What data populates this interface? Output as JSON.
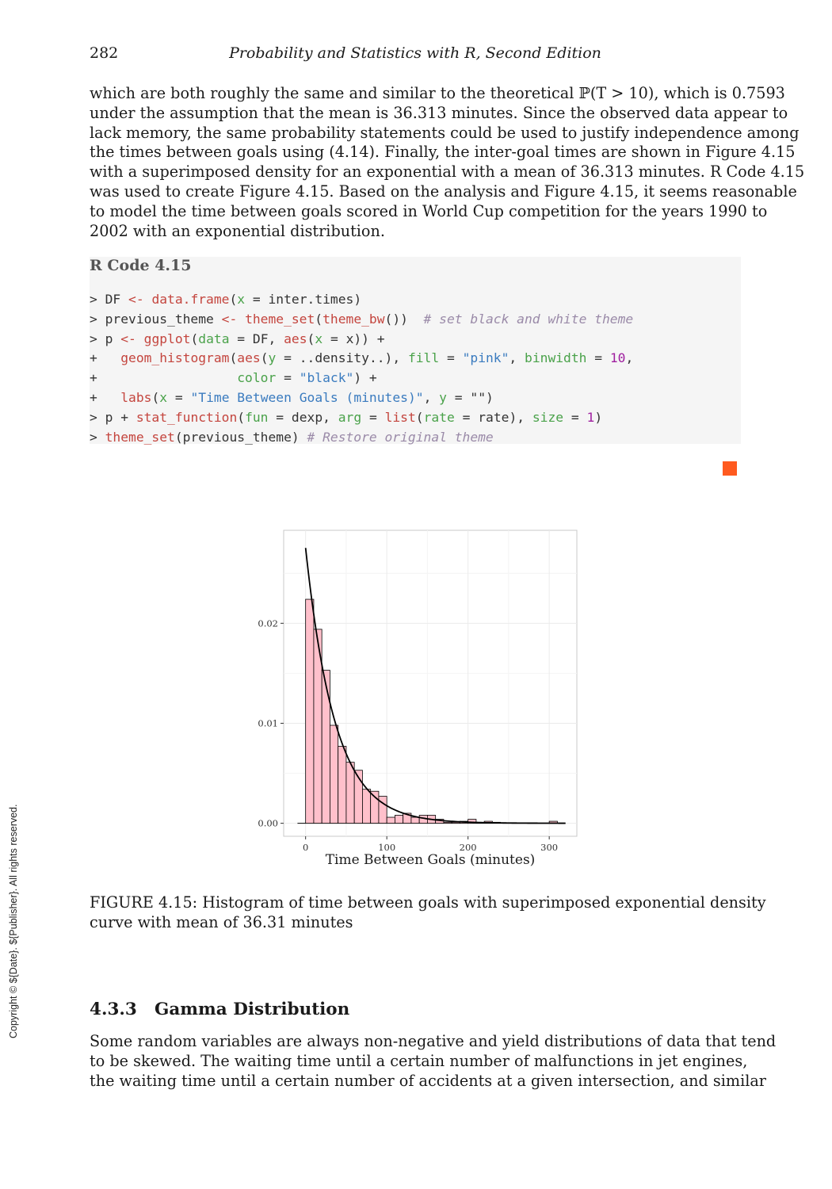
{
  "header": {
    "page_number": "282",
    "running_title": "Probability and Statistics with R, Second Edition"
  },
  "paragraph1": {
    "lines": [
      "which are both roughly the same and similar to the theoretical ℙ(T > 10), which is 0.7593",
      "under the assumption that the mean is 36.313 minutes. Since the observed data appear to",
      "lack memory, the same probability statements could be used to justify independence among",
      "the times between goals using (4.14). Finally, the inter-goal times are shown in Figure 4.15",
      "with a superimposed density for an exponential with a mean of 36.313 minutes. R Code 4.15",
      "was used to create Figure 4.15. Based on the analysis and Figure 4.15, it seems reasonable",
      "to model the time between goals scored in World Cup competition for the years 1990 to",
      "2002 with an exponential distribution."
    ]
  },
  "code": {
    "title": "R Code 4.15",
    "lines": [
      [
        {
          "t": "> DF "
        },
        {
          "t": "<-",
          "c": "kw"
        },
        {
          "t": " "
        },
        {
          "t": "data.frame",
          "c": "kw"
        },
        {
          "t": "("
        },
        {
          "t": "x",
          "c": "arg"
        },
        {
          "t": " = inter.times)"
        }
      ],
      [
        {
          "t": "> previous_theme "
        },
        {
          "t": "<-",
          "c": "kw"
        },
        {
          "t": " "
        },
        {
          "t": "theme_set",
          "c": "kw"
        },
        {
          "t": "("
        },
        {
          "t": "theme_bw",
          "c": "kw"
        },
        {
          "t": "())  "
        },
        {
          "t": "# set black and white theme",
          "c": "com"
        }
      ],
      [
        {
          "t": "> p "
        },
        {
          "t": "<-",
          "c": "kw"
        },
        {
          "t": " "
        },
        {
          "t": "ggplot",
          "c": "kw"
        },
        {
          "t": "("
        },
        {
          "t": "data",
          "c": "arg"
        },
        {
          "t": " = DF, "
        },
        {
          "t": "aes",
          "c": "kw"
        },
        {
          "t": "("
        },
        {
          "t": "x",
          "c": "arg"
        },
        {
          "t": " = x)) +"
        }
      ],
      [
        {
          "t": "+   "
        },
        {
          "t": "geom_histogram",
          "c": "kw"
        },
        {
          "t": "("
        },
        {
          "t": "aes",
          "c": "kw"
        },
        {
          "t": "("
        },
        {
          "t": "y",
          "c": "arg"
        },
        {
          "t": " = ..density..), "
        },
        {
          "t": "fill",
          "c": "arg"
        },
        {
          "t": " = "
        },
        {
          "t": "\"pink\"",
          "c": "str"
        },
        {
          "t": ", "
        },
        {
          "t": "binwidth",
          "c": "arg"
        },
        {
          "t": " = "
        },
        {
          "t": "10",
          "c": "num"
        },
        {
          "t": ","
        }
      ],
      [
        {
          "t": "+                  "
        },
        {
          "t": "color",
          "c": "arg"
        },
        {
          "t": " = "
        },
        {
          "t": "\"black\"",
          "c": "str"
        },
        {
          "t": ") +"
        }
      ],
      [
        {
          "t": "+   "
        },
        {
          "t": "labs",
          "c": "kw"
        },
        {
          "t": "("
        },
        {
          "t": "x",
          "c": "arg"
        },
        {
          "t": " = "
        },
        {
          "t": "\"Time Between Goals (minutes)\"",
          "c": "str"
        },
        {
          "t": ", "
        },
        {
          "t": "y",
          "c": "arg"
        },
        {
          "t": " = \"\")"
        }
      ],
      [
        {
          "t": "> p + "
        },
        {
          "t": "stat_function",
          "c": "kw"
        },
        {
          "t": "("
        },
        {
          "t": "fun",
          "c": "arg"
        },
        {
          "t": " = dexp, "
        },
        {
          "t": "arg",
          "c": "arg"
        },
        {
          "t": " = "
        },
        {
          "t": "list",
          "c": "kw"
        },
        {
          "t": "("
        },
        {
          "t": "rate",
          "c": "arg"
        },
        {
          "t": " = rate), "
        },
        {
          "t": "size",
          "c": "arg"
        },
        {
          "t": " = "
        },
        {
          "t": "1",
          "c": "num"
        },
        {
          "t": ")"
        }
      ],
      [
        {
          "t": "> "
        },
        {
          "t": "theme_set",
          "c": "kw"
        },
        {
          "t": "(previous_theme) "
        },
        {
          "t": "# Restore original theme",
          "c": "com"
        }
      ]
    ]
  },
  "figure": {
    "caption_lines": [
      "FIGURE 4.15: Histogram of time between goals with superimposed exponential density",
      "curve with mean of 36.31 minutes"
    ]
  },
  "chart_data": {
    "type": "bar",
    "title": "",
    "xlabel": "Time Between Goals (minutes)",
    "ylabel": "",
    "xlim": [
      -27,
      334
    ],
    "ylim": [
      -0.0013,
      0.0293
    ],
    "x_ticks": [
      0,
      100,
      200,
      300
    ],
    "x_tick_labels": [
      "0",
      "100",
      "200",
      "300"
    ],
    "y_ticks": [
      0.0,
      0.01,
      0.02
    ],
    "y_tick_labels": [
      "0.00",
      "0.01",
      "0.02"
    ],
    "grid": true,
    "bin_width": 10,
    "bins": [
      {
        "x0": 0,
        "x1": 10,
        "density": 0.0224
      },
      {
        "x0": 10,
        "x1": 20,
        "density": 0.0194
      },
      {
        "x0": 20,
        "x1": 30,
        "density": 0.0153
      },
      {
        "x0": 30,
        "x1": 40,
        "density": 0.0098
      },
      {
        "x0": 40,
        "x1": 50,
        "density": 0.0077
      },
      {
        "x0": 50,
        "x1": 60,
        "density": 0.0061
      },
      {
        "x0": 60,
        "x1": 70,
        "density": 0.0053
      },
      {
        "x0": 70,
        "x1": 80,
        "density": 0.0034
      },
      {
        "x0": 80,
        "x1": 90,
        "density": 0.0032
      },
      {
        "x0": 90,
        "x1": 100,
        "density": 0.0027
      },
      {
        "x0": 100,
        "x1": 110,
        "density": 0.0006
      },
      {
        "x0": 110,
        "x1": 120,
        "density": 0.0008
      },
      {
        "x0": 120,
        "x1": 130,
        "density": 0.001
      },
      {
        "x0": 130,
        "x1": 140,
        "density": 0.0006
      },
      {
        "x0": 140,
        "x1": 150,
        "density": 0.0008
      },
      {
        "x0": 150,
        "x1": 160,
        "density": 0.0008
      },
      {
        "x0": 160,
        "x1": 170,
        "density": 0.0004
      },
      {
        "x0": 170,
        "x1": 180,
        "density": 0.0001
      },
      {
        "x0": 180,
        "x1": 190,
        "density": 0.0001
      },
      {
        "x0": 190,
        "x1": 200,
        "density": 0.0002
      },
      {
        "x0": 200,
        "x1": 210,
        "density": 0.0004
      },
      {
        "x0": 210,
        "x1": 220,
        "density": 0.0001
      },
      {
        "x0": 220,
        "x1": 230,
        "density": 0.0002
      },
      {
        "x0": 230,
        "x1": 240,
        "density": 0.0001
      },
      {
        "x0": 300,
        "x1": 310,
        "density": 0.0002
      }
    ],
    "density_curve": {
      "distribution": "exponential",
      "mean": 36.313,
      "x_range": [
        0,
        320
      ]
    },
    "colors": {
      "bar_fill": "#ffc0cb",
      "bar_outline": "#000000",
      "curve": "#000000",
      "grid": "#ebebeb",
      "panel_border": "#c8c8c8"
    }
  },
  "section": {
    "number": "4.3.3",
    "title": "Gamma Distribution"
  },
  "paragraph2": {
    "lines": [
      "Some random variables are always non-negative and yield distributions of data that tend",
      "to be skewed. The waiting time until a certain number of malfunctions in jet engines,",
      "the waiting time until a certain number of accidents at a given intersection, and similar"
    ]
  },
  "copyright": "Copyright © ${Date}. ${Publisher}. All rights reserved."
}
